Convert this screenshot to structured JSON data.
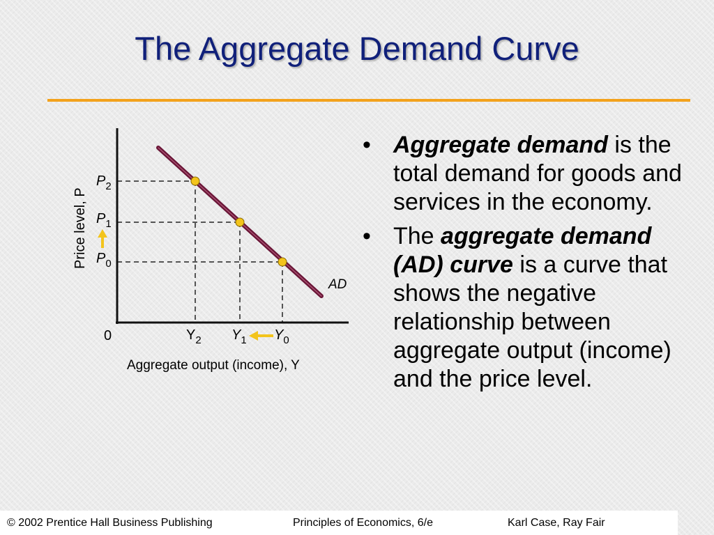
{
  "slide": {
    "title": "The Aggregate Demand Curve"
  },
  "diagram": {
    "y_axis_label": "Price level, P",
    "x_axis_label": "Aggregate output (income), Y",
    "origin_label": "0",
    "curve_label": "AD",
    "price_levels": [
      {
        "base": "P",
        "sub": "2"
      },
      {
        "base": "P",
        "sub": "1"
      },
      {
        "base": "P",
        "sub": "0"
      }
    ],
    "output_levels": [
      {
        "base": "Y",
        "sub": "2"
      },
      {
        "base": "Y",
        "sub": "1"
      },
      {
        "base": "Y",
        "sub": "0"
      }
    ],
    "colors": {
      "curve": "#6a1637",
      "points": "#f3c41c",
      "arrows": "#f3c41c"
    }
  },
  "bullets": [
    {
      "term": "Aggregate demand",
      "prefix": "",
      "rest": " is the total demand for goods and services in the economy."
    },
    {
      "term": "aggregate demand (AD) curve",
      "prefix": "The ",
      "rest": " is a curve that shows the negative relationship between aggregate output (income) and the price level."
    }
  ],
  "footer": {
    "copyright": "© 2002 Prentice Hall Business Publishing",
    "book": "Principles of Economics, 6/e",
    "authors": "Karl Case, Ray Fair"
  }
}
